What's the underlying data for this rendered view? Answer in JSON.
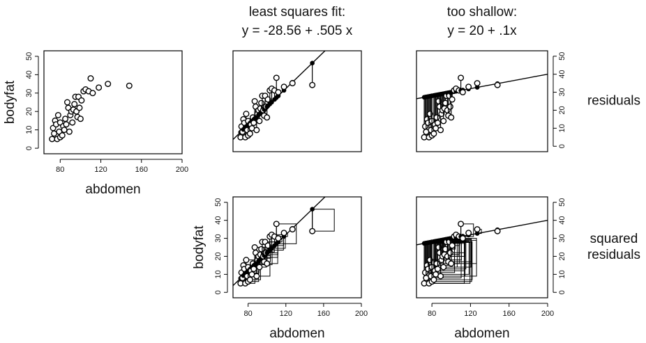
{
  "chart_data": [
    {
      "type": "scatter",
      "xlabel": "abdomen",
      "ylabel": "bodyfat",
      "x": [
        72,
        73,
        74,
        75,
        76,
        77,
        78,
        79,
        80,
        80,
        82,
        83,
        84,
        85,
        86,
        87,
        88,
        89,
        90,
        91,
        92,
        93,
        94,
        95,
        96,
        97,
        98,
        99,
        100,
        101,
        103,
        105,
        108,
        110,
        112,
        118,
        127,
        148
      ],
      "values": [
        5,
        11,
        8,
        15,
        13,
        5,
        18,
        9,
        14,
        6,
        7,
        12,
        10,
        16,
        13,
        25,
        22,
        9,
        18,
        20,
        14,
        21,
        24,
        28,
        20,
        17,
        28,
        22,
        16,
        26,
        31,
        32,
        31,
        38,
        30,
        33,
        35,
        34
      ],
      "xlim": [
        64,
        200
      ],
      "ylim": [
        -3,
        53
      ],
      "xticks": [
        80,
        120,
        160,
        200
      ],
      "yticks": [
        0,
        10,
        20,
        30,
        40,
        50
      ]
    },
    {
      "type": "residuals",
      "title": [
        "least squares fit:",
        "y = -28.56 + .505 x"
      ],
      "fit": {
        "intercept": -28.56,
        "slope": 0.505
      },
      "xlim": [
        64,
        200
      ],
      "ylim": [
        -3,
        53
      ]
    },
    {
      "type": "residuals",
      "title": [
        "too shallow:",
        "y = 20 + .1x"
      ],
      "side_label": [
        "residuals"
      ],
      "fit": {
        "intercept": 20,
        "slope": 0.1
      },
      "xlim": [
        64,
        200
      ],
      "ylim": [
        -3,
        53
      ],
      "yticks": [
        0,
        10,
        20,
        30,
        40,
        50
      ]
    },
    {
      "type": "squares",
      "xlabel": "abdomen",
      "ylabel": "bodyfat",
      "fit": {
        "intercept": -28.56,
        "slope": 0.505
      },
      "xlim": [
        64,
        200
      ],
      "ylim": [
        -3,
        53
      ],
      "xticks": [
        80,
        120,
        160,
        200
      ],
      "yticks": [
        0,
        10,
        20,
        30,
        40,
        50
      ]
    },
    {
      "type": "squares",
      "xlabel": "abdomen",
      "side_label": [
        "squared",
        "residuals"
      ],
      "fit": {
        "intercept": 20,
        "slope": 0.1
      },
      "xlim": [
        64,
        200
      ],
      "ylim": [
        -3,
        53
      ],
      "xticks": [
        80,
        120,
        160,
        200
      ],
      "yticks": [
        0,
        10,
        20,
        30,
        40,
        50
      ]
    }
  ]
}
